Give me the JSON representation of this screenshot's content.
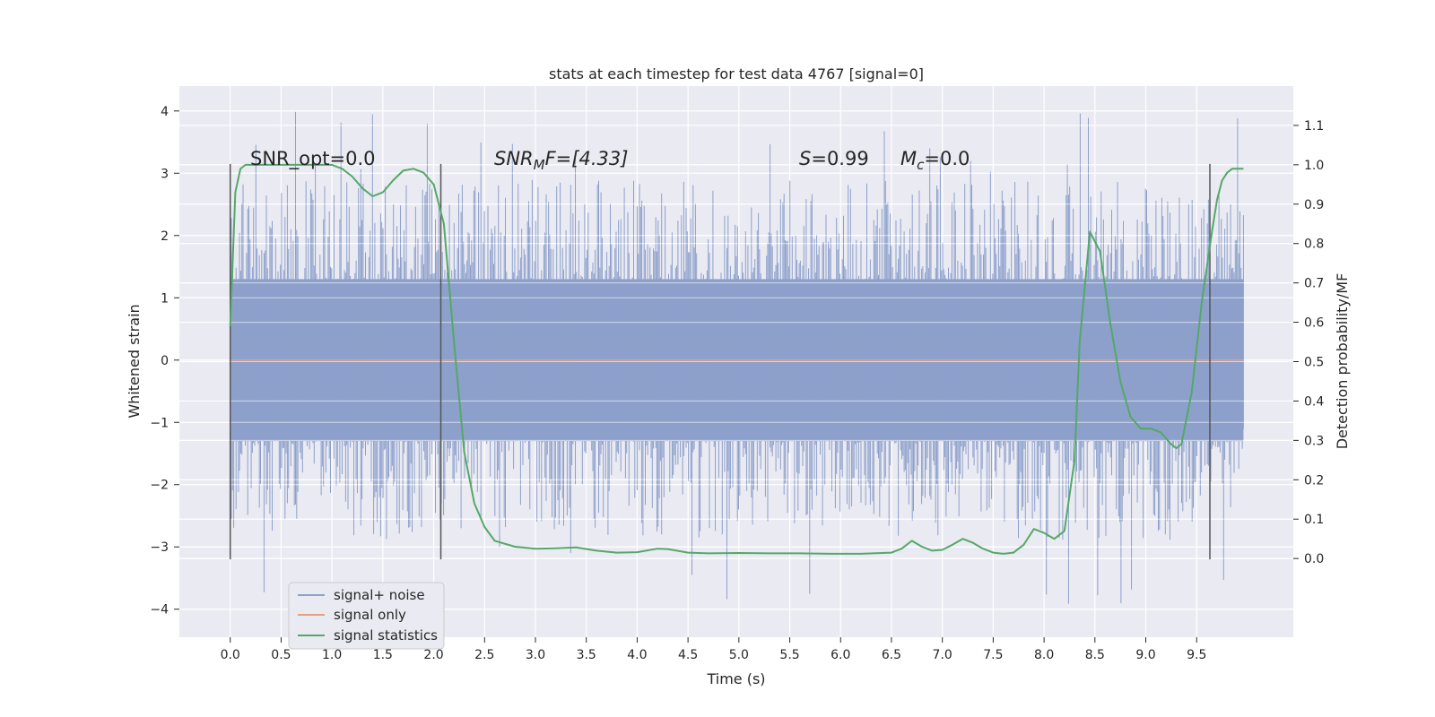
{
  "chart_data": {
    "type": "line",
    "title": "stats at each timestep for test data 4767 [signal=0]",
    "xlabel": "Time (s)",
    "ylabel": "Whitened strain",
    "ylabel_right": "Detection probability/MF",
    "xlim": [
      -0.5,
      10.45
    ],
    "ylim": [
      -4.45,
      4.4
    ],
    "ylim_right": [
      -0.2,
      1.2
    ],
    "xticks": [
      "0.0",
      "0.5",
      "1.0",
      "1.5",
      "2.0",
      "2.5",
      "3.0",
      "3.5",
      "4.0",
      "4.5",
      "5.0",
      "5.5",
      "6.0",
      "6.5",
      "7.0",
      "7.5",
      "8.0",
      "8.5",
      "9.0",
      "9.5"
    ],
    "yticks": [
      "4",
      "3",
      "2",
      "1",
      "0",
      "−1",
      "−2",
      "−3",
      "−4"
    ],
    "yticks_right": [
      "1.1",
      "1.0",
      "0.9",
      "0.8",
      "0.7",
      "0.6",
      "0.5",
      "0.4",
      "0.3",
      "0.2",
      "0.1",
      "0.0"
    ],
    "grid": true,
    "legend_position": "lower-left",
    "annotations": {
      "snr_opt": "SNR_opt=0.0",
      "snr_mf_base": "SNR",
      "snr_mf_sub": "M",
      "snr_mf_rest": "F=[4.33]",
      "s_base": "S",
      "s_rest": "=0.99",
      "mc_base": "M",
      "mc_sub": "c",
      "mc_rest": "=0.0"
    },
    "vertical_markers_x": [
      0.0,
      2.07,
      9.63
    ],
    "series": [
      {
        "name": "signal+ noise",
        "color": "#8da0cb",
        "envelope": {
          "x_range": [
            0.0,
            9.96
          ],
          "typical_band": [
            -1.3,
            1.3
          ],
          "peak_extent": [
            -4.05,
            4.0
          ]
        }
      },
      {
        "name": "signal only",
        "color": "#e5a07d",
        "x": [
          0.0,
          9.96
        ],
        "y": [
          0.0,
          0.0
        ]
      },
      {
        "name": "signal statistics",
        "color": "#55a868",
        "axis": "right",
        "x": [
          0.0,
          0.05,
          0.1,
          0.15,
          0.2,
          0.3,
          0.5,
          0.7,
          0.9,
          1.0,
          1.1,
          1.2,
          1.3,
          1.4,
          1.5,
          1.6,
          1.7,
          1.8,
          1.9,
          2.0,
          2.1,
          2.2,
          2.3,
          2.4,
          2.5,
          2.6,
          2.8,
          3.0,
          3.2,
          3.4,
          3.6,
          3.8,
          4.0,
          4.2,
          4.3,
          4.5,
          4.7,
          5.0,
          5.3,
          5.6,
          5.9,
          6.2,
          6.5,
          6.6,
          6.7,
          6.8,
          6.9,
          7.0,
          7.1,
          7.2,
          7.3,
          7.4,
          7.5,
          7.6,
          7.7,
          7.8,
          7.9,
          8.0,
          8.1,
          8.2,
          8.3,
          8.35,
          8.45,
          8.55,
          8.65,
          8.75,
          8.85,
          8.95,
          9.05,
          9.15,
          9.25,
          9.3,
          9.35,
          9.45,
          9.55,
          9.65,
          9.7,
          9.75,
          9.8,
          9.85,
          9.9,
          9.96
        ],
        "y": [
          0.59,
          0.93,
          0.99,
          1.0,
          1.0,
          1.0,
          1.0,
          1.0,
          1.0,
          1.0,
          0.99,
          0.97,
          0.94,
          0.92,
          0.93,
          0.96,
          0.985,
          0.99,
          0.98,
          0.95,
          0.85,
          0.55,
          0.27,
          0.14,
          0.08,
          0.045,
          0.03,
          0.025,
          0.026,
          0.028,
          0.02,
          0.015,
          0.016,
          0.025,
          0.024,
          0.015,
          0.013,
          0.014,
          0.013,
          0.013,
          0.012,
          0.012,
          0.015,
          0.025,
          0.045,
          0.03,
          0.02,
          0.022,
          0.035,
          0.05,
          0.04,
          0.025,
          0.015,
          0.012,
          0.015,
          0.035,
          0.075,
          0.065,
          0.05,
          0.07,
          0.25,
          0.55,
          0.83,
          0.78,
          0.6,
          0.45,
          0.36,
          0.33,
          0.33,
          0.32,
          0.29,
          0.28,
          0.29,
          0.42,
          0.65,
          0.83,
          0.91,
          0.96,
          0.98,
          0.99,
          0.99,
          0.99
        ]
      }
    ]
  }
}
